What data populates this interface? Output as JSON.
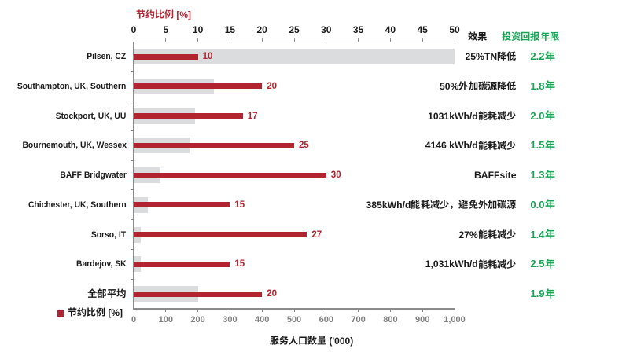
{
  "colors": {
    "red": "#B2242F",
    "gray_bar": "#DBDCDE",
    "green": "#18A454",
    "axis_line": "#8C8C8C",
    "tick_label_gray": "#7F7F7F",
    "text_black": "#1A1A1A",
    "background": "#FFFFFF"
  },
  "chart_data": {
    "type": "bar",
    "orientation": "horizontal",
    "categories": [
      "Pilsen, CZ",
      "Southampton, UK, Southern",
      "Stockport, UK, UU",
      "Bournemouth, UK, Wessex",
      "BAFF Bridgwater",
      "Chichester, UK, Southern",
      "Sorso, IT",
      "Bardejov, SK",
      "全部平均"
    ],
    "series": [
      {
        "name": "节约比例 [%]",
        "axis": "top",
        "color": "#B2242F",
        "values": [
          10,
          20,
          17,
          25,
          30,
          15,
          27,
          15,
          20
        ]
      },
      {
        "name": "服务人口数量 ('000)",
        "axis": "bottom",
        "color": "#DBDCDE",
        "values": [
          1000,
          250,
          190,
          173,
          84,
          45,
          23,
          22,
          200
        ]
      }
    ],
    "bar_value_labels": [
      "10",
      "20",
      "17",
      "25",
      "30",
      "15",
      "27",
      "15",
      "20"
    ],
    "top_axis": {
      "label": "节约比例 [%]",
      "range": [
        0,
        50
      ],
      "tick_step": 5,
      "ticks": [
        "0",
        "5",
        "10",
        "15",
        "20",
        "25",
        "30",
        "35",
        "40",
        "45",
        "50"
      ]
    },
    "bottom_axis": {
      "label": "服务人口数量 ('000)",
      "range": [
        0,
        1000
      ],
      "tick_step": 100,
      "ticks": [
        "0",
        "100",
        "200",
        "300",
        "400",
        "500",
        "600",
        "700",
        "800",
        "900",
        "1,000"
      ]
    },
    "legend": {
      "position": "bottom-left",
      "items": [
        {
          "label": "节约比例 [%]",
          "color": "#B2242F"
        }
      ]
    },
    "grid": false,
    "right_table": {
      "effect_header": "效果",
      "payback_header": "投资回报年限",
      "rows": [
        {
          "effect": "25%TN降低",
          "payback": "2.2年"
        },
        {
          "effect": "50%外加碳源降低",
          "payback": "1.8年"
        },
        {
          "effect": "1031kWh/d能耗减少",
          "payback": "2.0年"
        },
        {
          "effect": "4146 kWh/d能耗减少",
          "payback": "1.5年"
        },
        {
          "effect": "BAFFsite",
          "payback": "1.3年"
        },
        {
          "effect": "385kWh/d能耗减少，避免外加碳源",
          "payback": "0.0年"
        },
        {
          "effect": "27%能耗减少",
          "payback": "1.4年"
        },
        {
          "effect": "1,031kWh/d能耗减少",
          "payback": "2.5年"
        },
        {
          "effect": "",
          "payback": "1.9年"
        }
      ]
    }
  }
}
